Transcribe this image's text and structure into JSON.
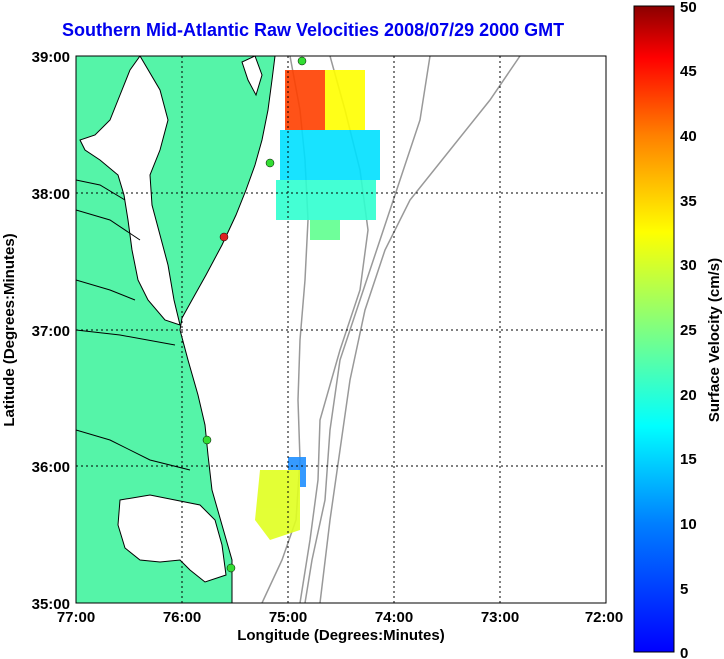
{
  "title": "Southern Mid-Atlantic Raw Velocities 2008/07/29 2000 GMT",
  "x_axis": {
    "label": "Longitude (Degrees:Minutes)",
    "ticks": [
      "77:00",
      "76:00",
      "75:00",
      "74:00",
      "73:00",
      "72:00"
    ]
  },
  "y_axis": {
    "label": "Latitude (Degrees:Minutes)",
    "ticks": [
      "39:00",
      "38:00",
      "37:00",
      "36:00",
      "35:00"
    ]
  },
  "colorbar": {
    "label": "Surface Velocity (cm/s)",
    "ticks": [
      "50",
      "45",
      "40",
      "35",
      "30",
      "25",
      "20",
      "15",
      "10",
      "5",
      "0"
    ],
    "min": 0,
    "max": 50
  },
  "colors": {
    "title": "#0000ee",
    "land": "#55f4a8",
    "bathymetry": "#999999",
    "station": "#33dd33"
  },
  "grid": "dotted"
}
